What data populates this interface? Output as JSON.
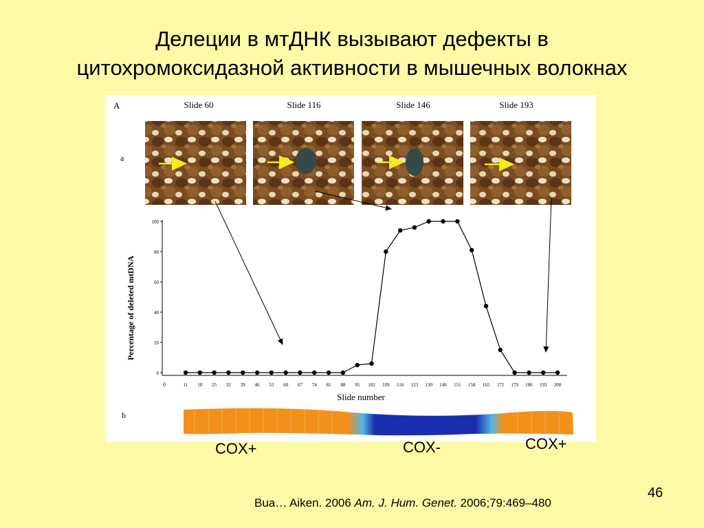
{
  "slide": {
    "title_line1": "Делеции в мтДНК вызывают дефекты в",
    "title_line2": "цитохромоксидазной активности в мышечных волокнах",
    "page_number": "46"
  },
  "figure": {
    "panel_A_label": "A",
    "panel_a_label": "a",
    "panel_b_label": "b",
    "micrographs": [
      {
        "label": "Slide 60",
        "cox_negative": false
      },
      {
        "label": "Slide 116",
        "cox_negative": true
      },
      {
        "label": "Slide 146",
        "cox_negative": true
      },
      {
        "label": "Slide 193",
        "cox_negative": false
      }
    ],
    "fiber_colors": {
      "cox_positive": "#f39019",
      "cox_negative": "#1a2fae",
      "transition": "#4fb6ea"
    }
  },
  "chart_data": {
    "type": "line",
    "xlabel": "Slide number",
    "ylabel": "Percentage of deleted mtDNA",
    "ylim": [
      0,
      100
    ],
    "yticks": [
      "0",
      "20",
      "40",
      "60",
      "80",
      "100"
    ],
    "x_origin_label": "0",
    "x": [
      "11",
      "18",
      "25",
      "32",
      "39",
      "46",
      "53",
      "60",
      "67",
      "74",
      "81",
      "88",
      "95",
      "102",
      "109",
      "116",
      "123",
      "130",
      "146",
      "151",
      "158",
      "165",
      "172",
      "179",
      "186",
      "193",
      "200"
    ],
    "values": [
      0,
      0,
      0,
      0,
      0,
      0,
      0,
      0,
      0,
      0,
      0,
      0,
      5,
      6,
      80,
      94,
      96,
      100,
      100,
      100,
      81,
      44,
      15,
      0,
      0,
      0,
      0
    ]
  },
  "labels": {
    "cox_left": "COX+",
    "cox_middle": "COX-",
    "cox_right": "COX+"
  },
  "citation": {
    "authors": "Bua… Aiken. 2006 ",
    "journal": "Am. J. Hum. Genet.",
    "details": " 2006;79:469–480"
  }
}
